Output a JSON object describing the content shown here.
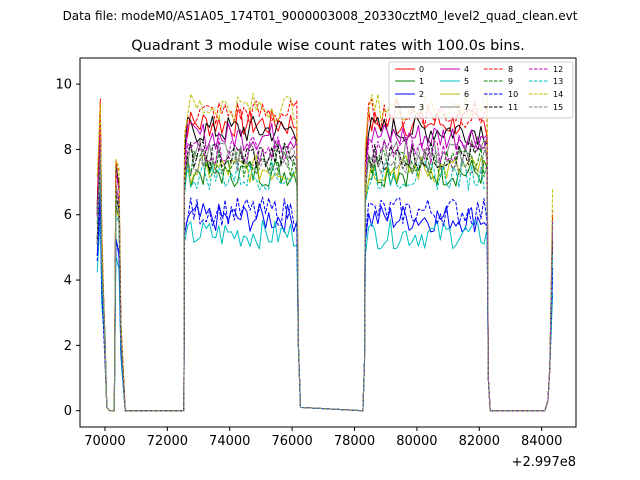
{
  "suptitle": "Data file: modeM0/AS1A05_174T01_9000003008_20330cztM0_level2_quad_clean.evt",
  "chart_data": {
    "type": "line",
    "title": "Quadrant 3 module wise count rates with 100.0s bins.",
    "xlabel": "",
    "ylabel": "",
    "x_offset_label": "+2.997e8",
    "x_offset": 299700000,
    "xlim": [
      69200,
      85100
    ],
    "ylim": [
      -0.5,
      10.8
    ],
    "xticks": [
      70000,
      72000,
      74000,
      76000,
      78000,
      80000,
      82000,
      84000
    ],
    "yticks": [
      0,
      2,
      4,
      6,
      8,
      10
    ],
    "xtick_labels": [
      "70000",
      "72000",
      "74000",
      "76000",
      "78000",
      "80000",
      "82000",
      "84000"
    ],
    "ytick_labels": [
      "0",
      "2",
      "4",
      "6",
      "8",
      "10"
    ],
    "bin_seconds": 100.0,
    "legend_position": "top-right",
    "legend_ncol": 4,
    "segments": [
      {
        "start": 69750,
        "peak_x": 69850,
        "rise_to": 70000,
        "end": 70150
      },
      {
        "start": 70350,
        "peak_x": 70450,
        "end": 70650
      },
      {
        "start": 72550,
        "end": 76150
      },
      {
        "start": 78350,
        "end": 82250
      },
      {
        "start": 84200,
        "end": 84350
      }
    ],
    "series": [
      {
        "name": "0",
        "color": "#ff0000",
        "dash": "solid",
        "level": 8.8
      },
      {
        "name": "1",
        "color": "#008000",
        "dash": "solid",
        "level": 7.3
      },
      {
        "name": "2",
        "color": "#0000ff",
        "dash": "solid",
        "level": 5.9
      },
      {
        "name": "3",
        "color": "#000000",
        "dash": "solid",
        "level": 8.6
      },
      {
        "name": "4",
        "color": "#bf00bf",
        "dash": "solid",
        "level": 8.4
      },
      {
        "name": "5",
        "color": "#00bfbf",
        "dash": "solid",
        "level": 5.4
      },
      {
        "name": "6",
        "color": "#bfbf00",
        "dash": "solid",
        "level": 7.4
      },
      {
        "name": "7",
        "color": "#7f7f7f",
        "dash": "solid",
        "level": 7.9
      },
      {
        "name": "8",
        "color": "#ff0000",
        "dash": "dashed",
        "level": 9.1
      },
      {
        "name": "9",
        "color": "#008000",
        "dash": "dashed",
        "level": 7.6
      },
      {
        "name": "10",
        "color": "#0000ff",
        "dash": "dashed",
        "level": 6.1
      },
      {
        "name": "11",
        "color": "#000000",
        "dash": "dashed",
        "level": 7.8
      },
      {
        "name": "12",
        "color": "#bf00bf",
        "dash": "dashed",
        "level": 8.0
      },
      {
        "name": "13",
        "color": "#00bfbf",
        "dash": "dashed",
        "level": 7.2
      },
      {
        "name": "14",
        "color": "#bfbf00",
        "dash": "dashed",
        "level": 9.3
      },
      {
        "name": "15",
        "color": "#7f7f7f",
        "dash": "dashed",
        "level": 7.6
      }
    ]
  }
}
